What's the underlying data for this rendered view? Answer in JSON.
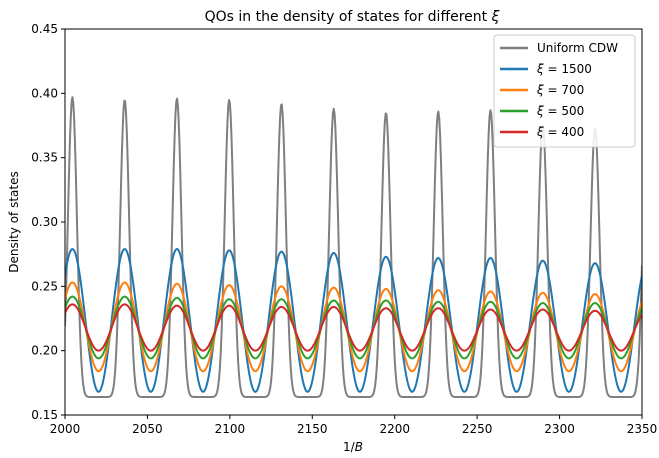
{
  "chart_data": {
    "type": "line",
    "title": "QOs in the density of states for different ξ",
    "xlabel": "1/B",
    "ylabel": "Density of states",
    "xlim": [
      2000,
      2350
    ],
    "ylim": [
      0.15,
      0.45
    ],
    "xticks": [
      "2000",
      "2050",
      "2100",
      "2150",
      "2200",
      "2250",
      "2300",
      "2350"
    ],
    "yticks": [
      "0.15",
      "0.20",
      "0.25",
      "0.30",
      "0.35",
      "0.40",
      "0.45"
    ],
    "grid": false,
    "legend_position": "top-right",
    "period": 31.7,
    "first_peak_x": 2004.5,
    "series": [
      {
        "name": "Uniform CDW",
        "color": "#7f7f7f",
        "max": 0.397,
        "min": 0.164,
        "shape": "sharp-peaks",
        "peak_values": [
          0.397,
          0.395,
          0.396,
          0.395,
          0.392,
          0.388,
          0.385,
          0.386,
          0.387,
          0.375,
          0.373
        ]
      },
      {
        "name": "ξ = 1500",
        "color": "#1f77b4",
        "max": 0.279,
        "min": 0.168,
        "shape": "cosine",
        "peak_values": [
          0.279,
          0.279,
          0.279,
          0.278,
          0.277,
          0.276,
          0.273,
          0.272,
          0.272,
          0.27,
          0.268
        ]
      },
      {
        "name": "ξ = 700",
        "color": "#ff7f0e",
        "max": 0.253,
        "min": 0.184,
        "shape": "cosine",
        "peak_values": [
          0.253,
          0.253,
          0.252,
          0.251,
          0.25,
          0.249,
          0.248,
          0.247,
          0.246,
          0.245,
          0.244
        ]
      },
      {
        "name": "ξ = 500",
        "color": "#2ca02c",
        "max": 0.242,
        "min": 0.194,
        "shape": "cosine",
        "peak_values": [
          0.242,
          0.242,
          0.241,
          0.24,
          0.24,
          0.239,
          0.239,
          0.238,
          0.238,
          0.237,
          0.237
        ]
      },
      {
        "name": "ξ = 400",
        "color": "#d62728",
        "max": 0.236,
        "min": 0.2,
        "shape": "cosine",
        "peak_values": [
          0.236,
          0.236,
          0.235,
          0.235,
          0.234,
          0.234,
          0.233,
          0.233,
          0.232,
          0.232,
          0.231
        ]
      }
    ]
  }
}
